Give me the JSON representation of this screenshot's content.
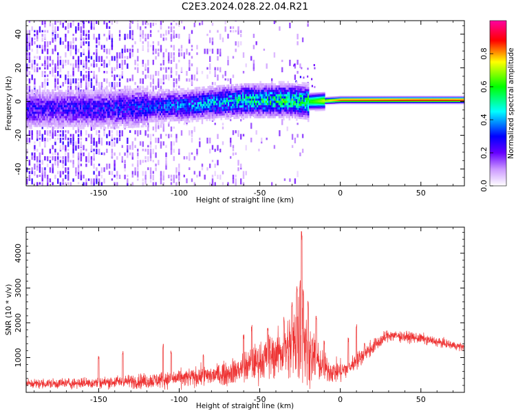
{
  "title": "C2E3.2024.028.22.04.R21",
  "chart_data": [
    {
      "type": "heatmap",
      "xlabel": "Height of straight line (km)",
      "ylabel": "Frequency (Hz)",
      "xlim": [
        -195,
        77
      ],
      "ylim": [
        -50,
        48
      ],
      "xticks": [
        -150,
        -100,
        -50,
        0,
        50
      ],
      "yticks": [
        -40,
        -20,
        0,
        20,
        40
      ],
      "colorbar": {
        "label": "Normalized spectral amplitude",
        "range": [
          0.0,
          1.0
        ],
        "ticks": [
          0.0,
          0.2,
          0.4,
          0.6,
          0.8
        ],
        "colors": [
          "#ffffff",
          "#cc99ff",
          "#6600ff",
          "#0000ff",
          "#00ffff",
          "#00ff00",
          "#ffff00",
          "#ff0000",
          "#ff00a0"
        ]
      },
      "description_values": {
        "band_center_hz": [
          [
            -180,
            -5
          ],
          [
            -150,
            -5
          ],
          [
            -100,
            -3
          ],
          [
            -60,
            0
          ],
          [
            -30,
            0
          ],
          [
            -20,
            -1
          ],
          [
            0,
            0
          ],
          [
            20,
            0
          ],
          [
            77,
            0
          ]
        ],
        "band_peak_amplitude": [
          [
            -180,
            0.25
          ],
          [
            -120,
            0.3
          ],
          [
            -80,
            0.4
          ],
          [
            -50,
            0.5
          ],
          [
            -25,
            0.55
          ],
          [
            -15,
            0.65
          ],
          [
            0,
            0.85
          ],
          [
            50,
            0.9
          ],
          [
            77,
            0.88
          ]
        ]
      }
    },
    {
      "type": "line",
      "xlabel": "Height of straight line (km)",
      "ylabel": "SNR (10 * v/v)",
      "xlim": [
        -195,
        77
      ],
      "ylim": [
        0,
        4750
      ],
      "xticks": [
        -150,
        -100,
        -50,
        0,
        50
      ],
      "yticks": [
        1000,
        2000,
        3000,
        4000
      ],
      "line_color": "#ee3333",
      "envelope": {
        "x": [
          -195,
          -180,
          -160,
          -150,
          -140,
          -120,
          -100,
          -80,
          -70,
          -60,
          -50,
          -45,
          -40,
          -35,
          -30,
          -25,
          -24,
          -22,
          -20,
          -15,
          -10,
          -5,
          0,
          5,
          10,
          20,
          30,
          40,
          50,
          60,
          70,
          77
        ],
        "center": [
          250,
          250,
          270,
          280,
          300,
          330,
          400,
          480,
          550,
          700,
          900,
          1000,
          1100,
          1200,
          1300,
          1500,
          1600,
          1400,
          1200,
          900,
          700,
          600,
          600,
          700,
          900,
          1300,
          1650,
          1600,
          1550,
          1450,
          1350,
          1300
        ],
        "spread": [
          120,
          130,
          140,
          150,
          160,
          200,
          230,
          260,
          300,
          400,
          500,
          550,
          600,
          700,
          900,
          1200,
          1200,
          1000,
          800,
          500,
          400,
          300,
          300,
          250,
          220,
          200,
          150,
          140,
          130,
          120,
          110,
          100
        ]
      },
      "spikes": [
        [
          -150,
          1050
        ],
        [
          -135,
          1200
        ],
        [
          -110,
          1400
        ],
        [
          -105,
          1200
        ],
        [
          -85,
          1150
        ],
        [
          -60,
          1700
        ],
        [
          -55,
          1950
        ],
        [
          -45,
          1900
        ],
        [
          -35,
          2200
        ],
        [
          -30,
          2600
        ],
        [
          -27,
          3100
        ],
        [
          -25,
          3300
        ],
        [
          -24,
          4750
        ],
        [
          -23,
          3000
        ],
        [
          -20,
          2700
        ],
        [
          -15,
          2200
        ],
        [
          -10,
          1500
        ],
        [
          5,
          1600
        ],
        [
          10,
          2050
        ],
        [
          15,
          1450
        ]
      ]
    }
  ]
}
